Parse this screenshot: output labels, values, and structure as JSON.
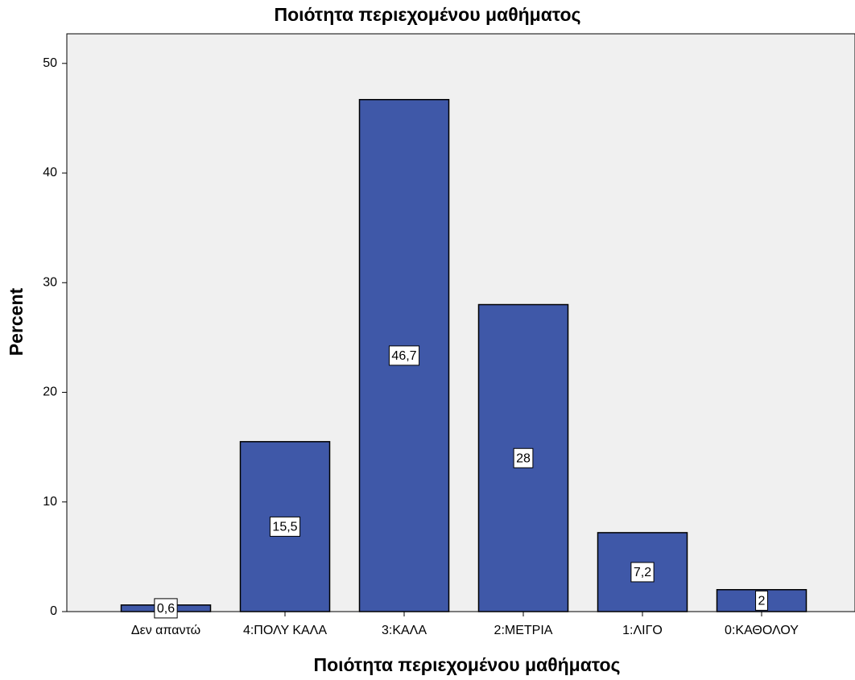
{
  "chart_data": {
    "type": "bar",
    "title": "Ποιότητα περιεχομένου μαθήματος",
    "x_label": "Ποιότητα περιεχομένου μαθήματος",
    "y_label": "Percent",
    "categories": [
      "Δεν απαντώ",
      "4:ΠΟΛΥ ΚΑΛΑ",
      "3:ΚΑΛΑ",
      "2:ΜΕΤΡΙΑ",
      "1:ΛΙΓΟ",
      "0:ΚΑΘΟΛΟΥ"
    ],
    "values": [
      0.6,
      15.5,
      46.7,
      28,
      7.2,
      2
    ],
    "value_labels": [
      "0,6",
      "15,5",
      "46,7",
      "28",
      "7,2",
      "2"
    ],
    "color": "#3f58a8",
    "ylim": [
      0,
      52.7
    ],
    "yticks": [
      0,
      10,
      20,
      30,
      40,
      50
    ],
    "grid": false
  }
}
